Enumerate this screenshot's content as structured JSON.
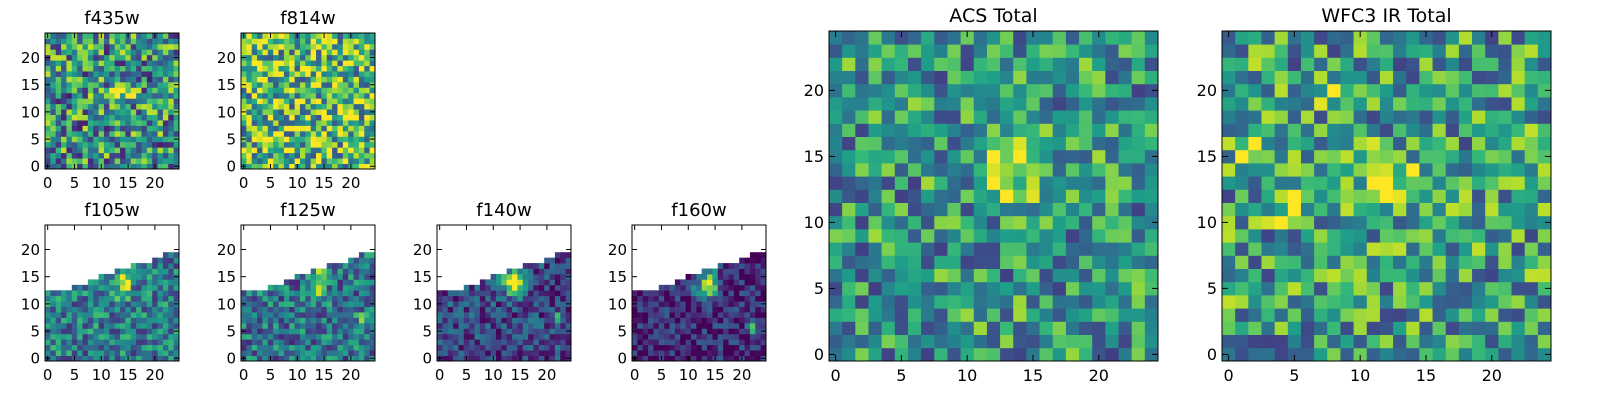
{
  "colormap": "viridis",
  "chart_data": [
    {
      "type": "heatmap",
      "title": "f435w",
      "xticks": [
        0,
        5,
        10,
        15,
        20
      ],
      "yticks": [
        0,
        5,
        10,
        15,
        20
      ],
      "xlim": [
        0,
        25
      ],
      "ylim": [
        0,
        25
      ],
      "grid": false,
      "rows": 25,
      "cols": 25,
      "description": "noisy background with bright source centered near (14, 14)"
    },
    {
      "type": "heatmap",
      "title": "f814w",
      "xticks": [
        0,
        5,
        10,
        15,
        20
      ],
      "yticks": [
        0,
        5,
        10,
        15,
        20
      ],
      "xlim": [
        0,
        25
      ],
      "ylim": [
        0,
        25
      ],
      "grid": false,
      "rows": 25,
      "cols": 25,
      "description": "noisy bright background"
    },
    {
      "type": "heatmap",
      "title": "f105w",
      "xticks": [
        0,
        5,
        10,
        15,
        20
      ],
      "yticks": [
        0,
        5,
        10,
        15,
        20
      ],
      "xlim": [
        0,
        25
      ],
      "ylim": [
        0,
        25
      ],
      "grid": false,
      "rows": 25,
      "cols": 25,
      "description": "masked upper-left region (white), bright source near (14, 14)"
    },
    {
      "type": "heatmap",
      "title": "f125w",
      "xticks": [
        0,
        5,
        10,
        15,
        20
      ],
      "yticks": [
        0,
        5,
        10,
        15,
        20
      ],
      "xlim": [
        0,
        25
      ],
      "ylim": [
        0,
        25
      ],
      "grid": false,
      "rows": 25,
      "cols": 25,
      "description": "masked upper-left region (white), bright source near (14, 14)"
    },
    {
      "type": "heatmap",
      "title": "f140w",
      "xticks": [
        0,
        5,
        10,
        15,
        20
      ],
      "yticks": [
        0,
        5,
        10,
        15,
        20
      ],
      "xlim": [
        0,
        25
      ],
      "ylim": [
        0,
        25
      ],
      "grid": false,
      "rows": 25,
      "cols": 25,
      "description": "masked upper-left region (white), bright source near (14, 14), darker background"
    },
    {
      "type": "heatmap",
      "title": "f160w",
      "xticks": [
        0,
        5,
        10,
        15,
        20
      ],
      "yticks": [
        0,
        5,
        10,
        15,
        20
      ],
      "xlim": [
        0,
        25
      ],
      "ylim": [
        0,
        25
      ],
      "grid": false,
      "rows": 25,
      "cols": 25,
      "description": "masked upper-left region (white), bright source near (14, 14), dark background"
    },
    {
      "type": "heatmap",
      "title": "ACS Total",
      "xticks": [
        0,
        5,
        10,
        15,
        20
      ],
      "yticks": [
        0,
        5,
        10,
        15,
        20
      ],
      "xlim": [
        0,
        25
      ],
      "ylim": [
        0,
        25
      ],
      "grid": false,
      "rows": 25,
      "cols": 25,
      "description": "noisy background with bright source centered near (14, 14)"
    },
    {
      "type": "heatmap",
      "title": "WFC3 IR Total",
      "xticks": [
        0,
        5,
        10,
        15,
        20
      ],
      "yticks": [
        0,
        5,
        10,
        15,
        20
      ],
      "xlim": [
        0,
        25
      ],
      "ylim": [
        0,
        25
      ],
      "grid": false,
      "rows": 25,
      "cols": 25,
      "description": "noisy background with bright source near (12, 13) and bright patch near (2, 15)"
    }
  ]
}
